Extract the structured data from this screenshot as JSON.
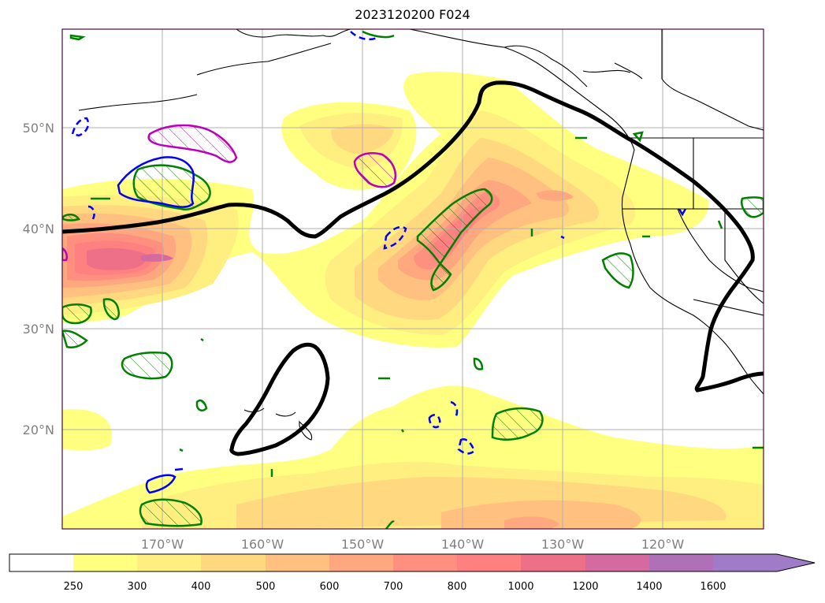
{
  "title": "2023120200 F024",
  "map": {
    "region": "North Pacific / West Coast of North America",
    "projection": "PlateCarree",
    "lon_range": [
      -180,
      -110
    ],
    "lat_range": [
      10,
      60
    ],
    "gridlines": true,
    "lat_labels": [
      "50°N",
      "40°N",
      "30°N",
      "20°N"
    ],
    "lon_labels": [
      "170°W",
      "160°W",
      "150°W",
      "140°W",
      "130°W",
      "120°W"
    ],
    "colors": {
      "filled_contours": [
        "#ffffff",
        "#ffff80",
        "#ffee80",
        "#ffd880",
        "#ffc080",
        "#ffa880",
        "#ff9080",
        "#ff8080",
        "#ee7088",
        "#d46aa0",
        "#b070b8",
        "#a07cc8"
      ],
      "bold_contour": "#000000",
      "green_contour": "#008000",
      "blue_contour": "#0000ff",
      "magenta_contour": "#bb00bb",
      "coastline": "#000000",
      "gridline": "#b0b0b0"
    }
  },
  "colorbar": {
    "ticks": [
      "250",
      "300",
      "400",
      "500",
      "600",
      "700",
      "800",
      "1000",
      "1200",
      "1400",
      "1600"
    ],
    "extend": "max"
  }
}
